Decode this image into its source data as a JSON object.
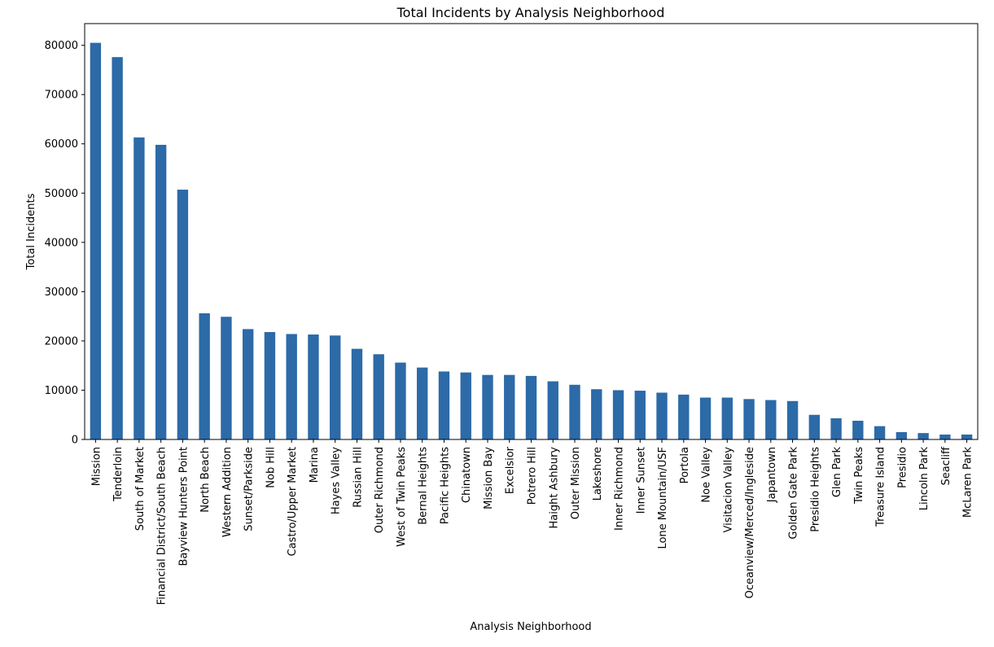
{
  "chart_data": {
    "type": "bar",
    "title": "Total Incidents by Analysis Neighborhood",
    "xlabel": "Analysis Neighborhood",
    "ylabel": "Total Incidents",
    "ylim": [
      0,
      84400
    ],
    "yticks": [
      0,
      10000,
      20000,
      30000,
      40000,
      50000,
      60000,
      70000,
      80000
    ],
    "grid": false,
    "legend": "none",
    "bar_color": "#2c6aa8",
    "categories": [
      "Mission",
      "Tenderloin",
      "South of Market",
      "Financial District/South Beach",
      "Bayview Hunters Point",
      "North Beach",
      "Western Addition",
      "Sunset/Parkside",
      "Nob Hill",
      "Castro/Upper Market",
      "Marina",
      "Hayes Valley",
      "Russian Hill",
      "Outer Richmond",
      "West of Twin Peaks",
      "Bernal Heights",
      "Pacific Heights",
      "Chinatown",
      "Mission Bay",
      "Excelsior",
      "Potrero Hill",
      "Haight Ashbury",
      "Outer Mission",
      "Lakeshore",
      "Inner Richmond",
      "Inner Sunset",
      "Lone Mountain/USF",
      "Portola",
      "Noe Valley",
      "Visitacion Valley",
      "Oceanview/Merced/Ingleside",
      "Japantown",
      "Golden Gate Park",
      "Presidio Heights",
      "Glen Park",
      "Twin Peaks",
      "Treasure Island",
      "Presidio",
      "Lincoln Park",
      "Seacliff",
      "McLaren Park"
    ],
    "values": [
      80500,
      77600,
      61300,
      59800,
      50700,
      25600,
      24900,
      22400,
      21800,
      21400,
      21300,
      21100,
      18400,
      17300,
      15600,
      14600,
      13800,
      13600,
      13100,
      13100,
      12900,
      11800,
      11100,
      10200,
      10000,
      9900,
      9500,
      9100,
      8500,
      8500,
      8200,
      8000,
      7800,
      5000,
      4300,
      3800,
      2700,
      1500,
      1300,
      1000,
      1000
    ]
  }
}
